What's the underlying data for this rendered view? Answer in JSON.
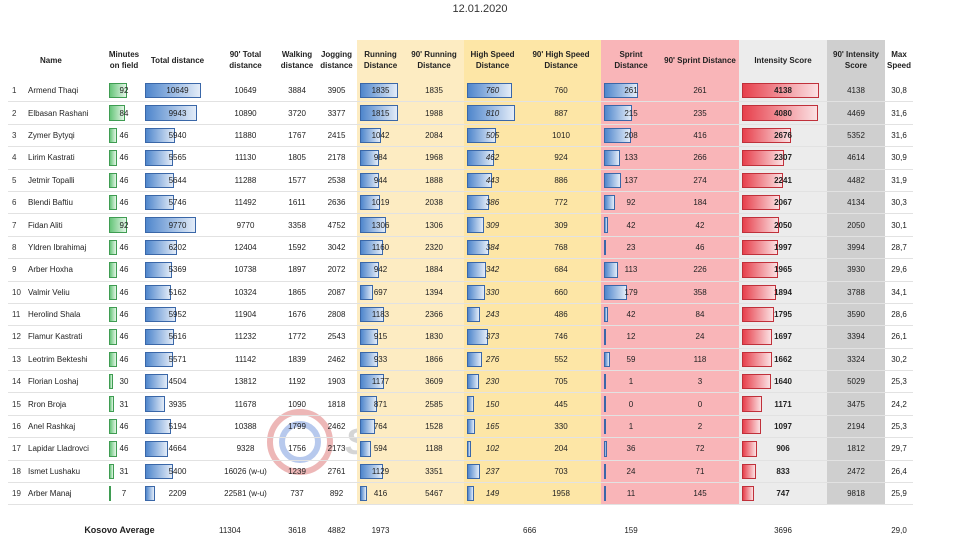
{
  "date": "12.01.2020",
  "watermark": "Shkodra Sport",
  "colors": {
    "green": "#67c57a",
    "blue": "#4f86cc",
    "red": "#e7404c",
    "running_bg": "#fdecc2",
    "high_speed_bg": "#fde6a6",
    "sprint_bg": "#f9b5b8",
    "intensity_bg": "#ececec"
  },
  "headers": {
    "name": "Name",
    "minutes": "Minutes on field",
    "total": "Total distance",
    "total90": "90' Total distance",
    "walking": "Walking distance",
    "jogging": "Jogging distance",
    "running": "Running Distance",
    "running90": "90' Running Distance",
    "hsd": "High Speed Distance",
    "hsd90": "90' High Speed Distance",
    "sprint": "Sprint Distance",
    "sprint90": "90' Sprint Distance",
    "intensity": "Intensity Score",
    "intensity90": "90' Intensity Score",
    "maxspeed": "Max Speed"
  },
  "players": [
    {
      "idx": "1",
      "name": "Armend Thaqi",
      "minutes": "92",
      "total": "10649",
      "total90": "10649",
      "walking": "3884",
      "jogging": "3905",
      "running": "1835",
      "running90": "1835",
      "hsd": "760",
      "hsd90": "760",
      "sprint": "261",
      "sprint90": "261",
      "intensity": "4138",
      "intensity90": "4138",
      "maxspeed": "30,8"
    },
    {
      "idx": "2",
      "name": "Elbasan Rashani",
      "minutes": "84",
      "total": "9943",
      "total90": "10890",
      "walking": "3720",
      "jogging": "3377",
      "running": "1815",
      "running90": "1988",
      "hsd": "810",
      "hsd90": "887",
      "sprint": "215",
      "sprint90": "235",
      "intensity": "4080",
      "intensity90": "4469",
      "maxspeed": "31,6"
    },
    {
      "idx": "3",
      "name": "Zymer Bytyqi",
      "minutes": "46",
      "total": "5940",
      "total90": "11880",
      "walking": "1767",
      "jogging": "2415",
      "running": "1042",
      "running90": "2084",
      "hsd": "505",
      "hsd90": "1010",
      "sprint": "208",
      "sprint90": "416",
      "intensity": "2676",
      "intensity90": "5352",
      "maxspeed": "31,6"
    },
    {
      "idx": "4",
      "name": "Lirim Kastrati",
      "minutes": "46",
      "total": "5565",
      "total90": "11130",
      "walking": "1805",
      "jogging": "2178",
      "running": "984",
      "running90": "1968",
      "hsd": "462",
      "hsd90": "924",
      "sprint": "133",
      "sprint90": "266",
      "intensity": "2307",
      "intensity90": "4614",
      "maxspeed": "30,9"
    },
    {
      "idx": "5",
      "name": "Jetmir Topalli",
      "minutes": "46",
      "total": "5644",
      "total90": "11288",
      "walking": "1577",
      "jogging": "2538",
      "running": "944",
      "running90": "1888",
      "hsd": "443",
      "hsd90": "886",
      "sprint": "137",
      "sprint90": "274",
      "intensity": "2241",
      "intensity90": "4482",
      "maxspeed": "31,9"
    },
    {
      "idx": "6",
      "name": "Blendi Baftiu",
      "minutes": "46",
      "total": "5746",
      "total90": "11492",
      "walking": "1611",
      "jogging": "2636",
      "running": "1019",
      "running90": "2038",
      "hsd": "386",
      "hsd90": "772",
      "sprint": "92",
      "sprint90": "184",
      "intensity": "2067",
      "intensity90": "4134",
      "maxspeed": "30,3"
    },
    {
      "idx": "7",
      "name": "Fidan Aliti",
      "minutes": "92",
      "total": "9770",
      "total90": "9770",
      "walking": "3358",
      "jogging": "4752",
      "running": "1306",
      "running90": "1306",
      "hsd": "309",
      "hsd90": "309",
      "sprint": "42",
      "sprint90": "42",
      "intensity": "2050",
      "intensity90": "2050",
      "maxspeed": "30,1"
    },
    {
      "idx": "8",
      "name": "Yldren Ibrahimaj",
      "minutes": "46",
      "total": "6202",
      "total90": "12404",
      "walking": "1592",
      "jogging": "3042",
      "running": "1160",
      "running90": "2320",
      "hsd": "384",
      "hsd90": "768",
      "sprint": "23",
      "sprint90": "46",
      "intensity": "1997",
      "intensity90": "3994",
      "maxspeed": "28,7"
    },
    {
      "idx": "9",
      "name": "Arber Hoxha",
      "minutes": "46",
      "total": "5369",
      "total90": "10738",
      "walking": "1897",
      "jogging": "2072",
      "running": "942",
      "running90": "1884",
      "hsd": "342",
      "hsd90": "684",
      "sprint": "113",
      "sprint90": "226",
      "intensity": "1965",
      "intensity90": "3930",
      "maxspeed": "29,6"
    },
    {
      "idx": "10",
      "name": "Valmir Veliu",
      "minutes": "46",
      "total": "5162",
      "total90": "10324",
      "walking": "1865",
      "jogging": "2087",
      "running": "697",
      "running90": "1394",
      "hsd": "330",
      "hsd90": "660",
      "sprint": "179",
      "sprint90": "358",
      "intensity": "1894",
      "intensity90": "3788",
      "maxspeed": "34,1"
    },
    {
      "idx": "11",
      "name": "Herolind Shala",
      "minutes": "46",
      "total": "5952",
      "total90": "11904",
      "walking": "1676",
      "jogging": "2808",
      "running": "1183",
      "running90": "2366",
      "hsd": "243",
      "hsd90": "486",
      "sprint": "42",
      "sprint90": "84",
      "intensity": "1795",
      "intensity90": "3590",
      "maxspeed": "28,6"
    },
    {
      "idx": "12",
      "name": "Flamur Kastrati",
      "minutes": "46",
      "total": "5616",
      "total90": "11232",
      "walking": "1772",
      "jogging": "2543",
      "running": "915",
      "running90": "1830",
      "hsd": "373",
      "hsd90": "746",
      "sprint": "12",
      "sprint90": "24",
      "intensity": "1697",
      "intensity90": "3394",
      "maxspeed": "26,1"
    },
    {
      "idx": "13",
      "name": "Leotrim Bekteshi",
      "minutes": "46",
      "total": "5571",
      "total90": "11142",
      "walking": "1839",
      "jogging": "2462",
      "running": "933",
      "running90": "1866",
      "hsd": "276",
      "hsd90": "552",
      "sprint": "59",
      "sprint90": "118",
      "intensity": "1662",
      "intensity90": "3324",
      "maxspeed": "30,2"
    },
    {
      "idx": "14",
      "name": "Florian Loshaj",
      "minutes": "30",
      "total": "4504",
      "total90": "13812",
      "walking": "1192",
      "jogging": "1903",
      "running": "1177",
      "running90": "3609",
      "hsd": "230",
      "hsd90": "705",
      "sprint": "1",
      "sprint90": "3",
      "intensity": "1640",
      "intensity90": "5029",
      "maxspeed": "25,3"
    },
    {
      "idx": "15",
      "name": "Rron Broja",
      "minutes": "31",
      "total": "3935",
      "total90": "11678",
      "walking": "1090",
      "jogging": "1818",
      "running": "871",
      "running90": "2585",
      "hsd": "150",
      "hsd90": "445",
      "sprint": "0",
      "sprint90": "0",
      "intensity": "1171",
      "intensity90": "3475",
      "maxspeed": "24,2"
    },
    {
      "idx": "16",
      "name": "Anel Rashkaj",
      "minutes": "46",
      "total": "5194",
      "total90": "10388",
      "walking": "1799",
      "jogging": "2462",
      "running": "764",
      "running90": "1528",
      "hsd": "165",
      "hsd90": "330",
      "sprint": "1",
      "sprint90": "2",
      "intensity": "1097",
      "intensity90": "2194",
      "maxspeed": "25,3"
    },
    {
      "idx": "17",
      "name": "Lapidar Lladrovci",
      "minutes": "46",
      "total": "4664",
      "total90": "9328",
      "walking": "1756",
      "jogging": "2173",
      "running": "594",
      "running90": "1188",
      "hsd": "102",
      "hsd90": "204",
      "sprint": "36",
      "sprint90": "72",
      "intensity": "906",
      "intensity90": "1812",
      "maxspeed": "29,7"
    },
    {
      "idx": "18",
      "name": "Ismet Lushaku",
      "minutes": "31",
      "total": "5400",
      "total90": "16026 (w-u)",
      "walking": "1239",
      "jogging": "2761",
      "running": "1129",
      "running90": "3351",
      "hsd": "237",
      "hsd90": "703",
      "sprint": "24",
      "sprint90": "71",
      "intensity": "833",
      "intensity90": "2472",
      "maxspeed": "26,4"
    },
    {
      "idx": "19",
      "name": "Arber Manaj",
      "minutes": "7",
      "total": "2209",
      "total90": "22581 (w-u)",
      "walking": "737",
      "jogging": "892",
      "running": "416",
      "running90": "5467",
      "hsd": "149",
      "hsd90": "1958",
      "sprint": "11",
      "sprint90": "145",
      "intensity": "747",
      "intensity90": "9818",
      "maxspeed": "25,9"
    }
  ],
  "average": {
    "label": "Kosovo Average",
    "total": "11304",
    "walking": "3618",
    "jogging": "4882",
    "running": "1973",
    "hsd": "666",
    "sprint": "159",
    "intensity": "3696",
    "maxspeed": "29,0"
  }
}
